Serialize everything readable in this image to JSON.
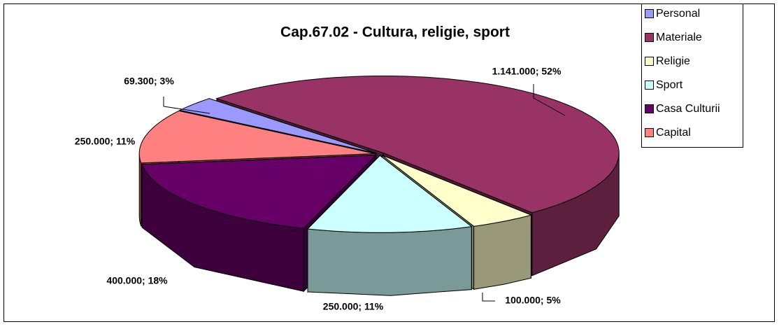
{
  "chart_data": {
    "type": "pie3d",
    "title": "Cap.67.02 - Cultura, religie, sport",
    "categories": [
      "Personal",
      "Materiale",
      "Religie",
      "Sport",
      "Casa Culturii",
      "Capital"
    ],
    "values": [
      69300,
      1141000,
      100000,
      250000,
      400000,
      250000
    ],
    "value_labels": [
      "69.300; 3%",
      "1.141.000; 52%",
      "100.000; 5%",
      "250.000; 11%",
      "400.000; 18%",
      "250.000; 11%"
    ],
    "colors": [
      "#9999ff",
      "#993366",
      "#ffffcc",
      "#ccffff",
      "#660066",
      "#ff8080"
    ],
    "legend": "right"
  }
}
